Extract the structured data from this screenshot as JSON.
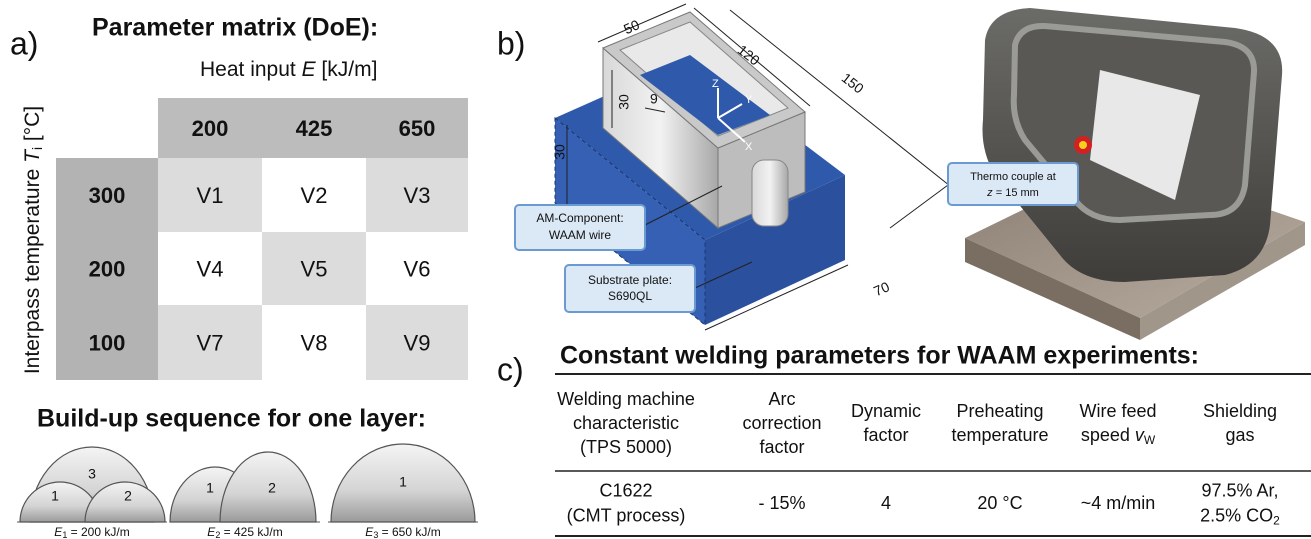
{
  "panel_a": {
    "label": "a)",
    "title": "Parameter matrix (DoE):",
    "column_axis": {
      "text": "Heat input ",
      "symbol": "E",
      "unit": " [kJ/m]"
    },
    "row_axis": {
      "text": "Interpass temperature ",
      "symbol": "T",
      "subscript": "i",
      "unit": " [°C]"
    },
    "columns": [
      "200",
      "425",
      "650"
    ],
    "rows": [
      "300",
      "200",
      "100"
    ],
    "cells": [
      [
        "V1",
        "V2",
        "V3"
      ],
      [
        "V4",
        "V5",
        "V6"
      ],
      [
        "V7",
        "V8",
        "V9"
      ]
    ]
  },
  "build_up": {
    "title": "Build-up sequence for one layer:",
    "layers": [
      {
        "beads": [
          "1",
          "2",
          "3"
        ],
        "symbol": "E",
        "subscript": "1",
        "value": " = 200 kJ/m"
      },
      {
        "beads": [
          "1",
          "2"
        ],
        "symbol": "E",
        "subscript": "2",
        "value": " = 425 kJ/m"
      },
      {
        "beads": [
          "1"
        ],
        "symbol": "E",
        "subscript": "3",
        "value": " = 650 kJ/m"
      }
    ]
  },
  "panel_b": {
    "label": "b)",
    "dimensions": {
      "width": "50",
      "length": "120",
      "total_length": "150",
      "wall_height": "30",
      "wall_thickness": "9",
      "plate_height": "30",
      "plate_width": "70"
    },
    "axes": {
      "z": "Z",
      "y": "Y",
      "x": "X"
    },
    "callouts": {
      "am_component": [
        "AM-Component:",
        "WAAM wire"
      ],
      "substrate": [
        "Substrate plate:",
        "S690QL"
      ],
      "thermocouple": {
        "line1": "Thermo couple at",
        "symbol": "z",
        "rest": " = 15 mm"
      }
    }
  },
  "panel_c": {
    "label": "c)",
    "title": "Constant welding parameters for WAAM experiments:",
    "headers": [
      [
        "Welding machine",
        "characteristic",
        "(TPS 5000)"
      ],
      [
        "Arc",
        "correction",
        "factor"
      ],
      [
        "Dynamic",
        "factor"
      ],
      [
        "Preheating",
        "temperature"
      ],
      [
        "Wire feed",
        {
          "text": "speed ",
          "symbol": "v",
          "subscript": "W"
        }
      ],
      [
        "Shielding",
        "gas"
      ]
    ],
    "row": [
      [
        "C1622",
        "(CMT process)"
      ],
      [
        "- 15%"
      ],
      [
        "4"
      ],
      [
        "20 °C"
      ],
      [
        "~4 m/min"
      ],
      [
        "97.5% Ar,",
        {
          "text": "2.5% CO",
          "subscript": "2"
        }
      ]
    ]
  }
}
